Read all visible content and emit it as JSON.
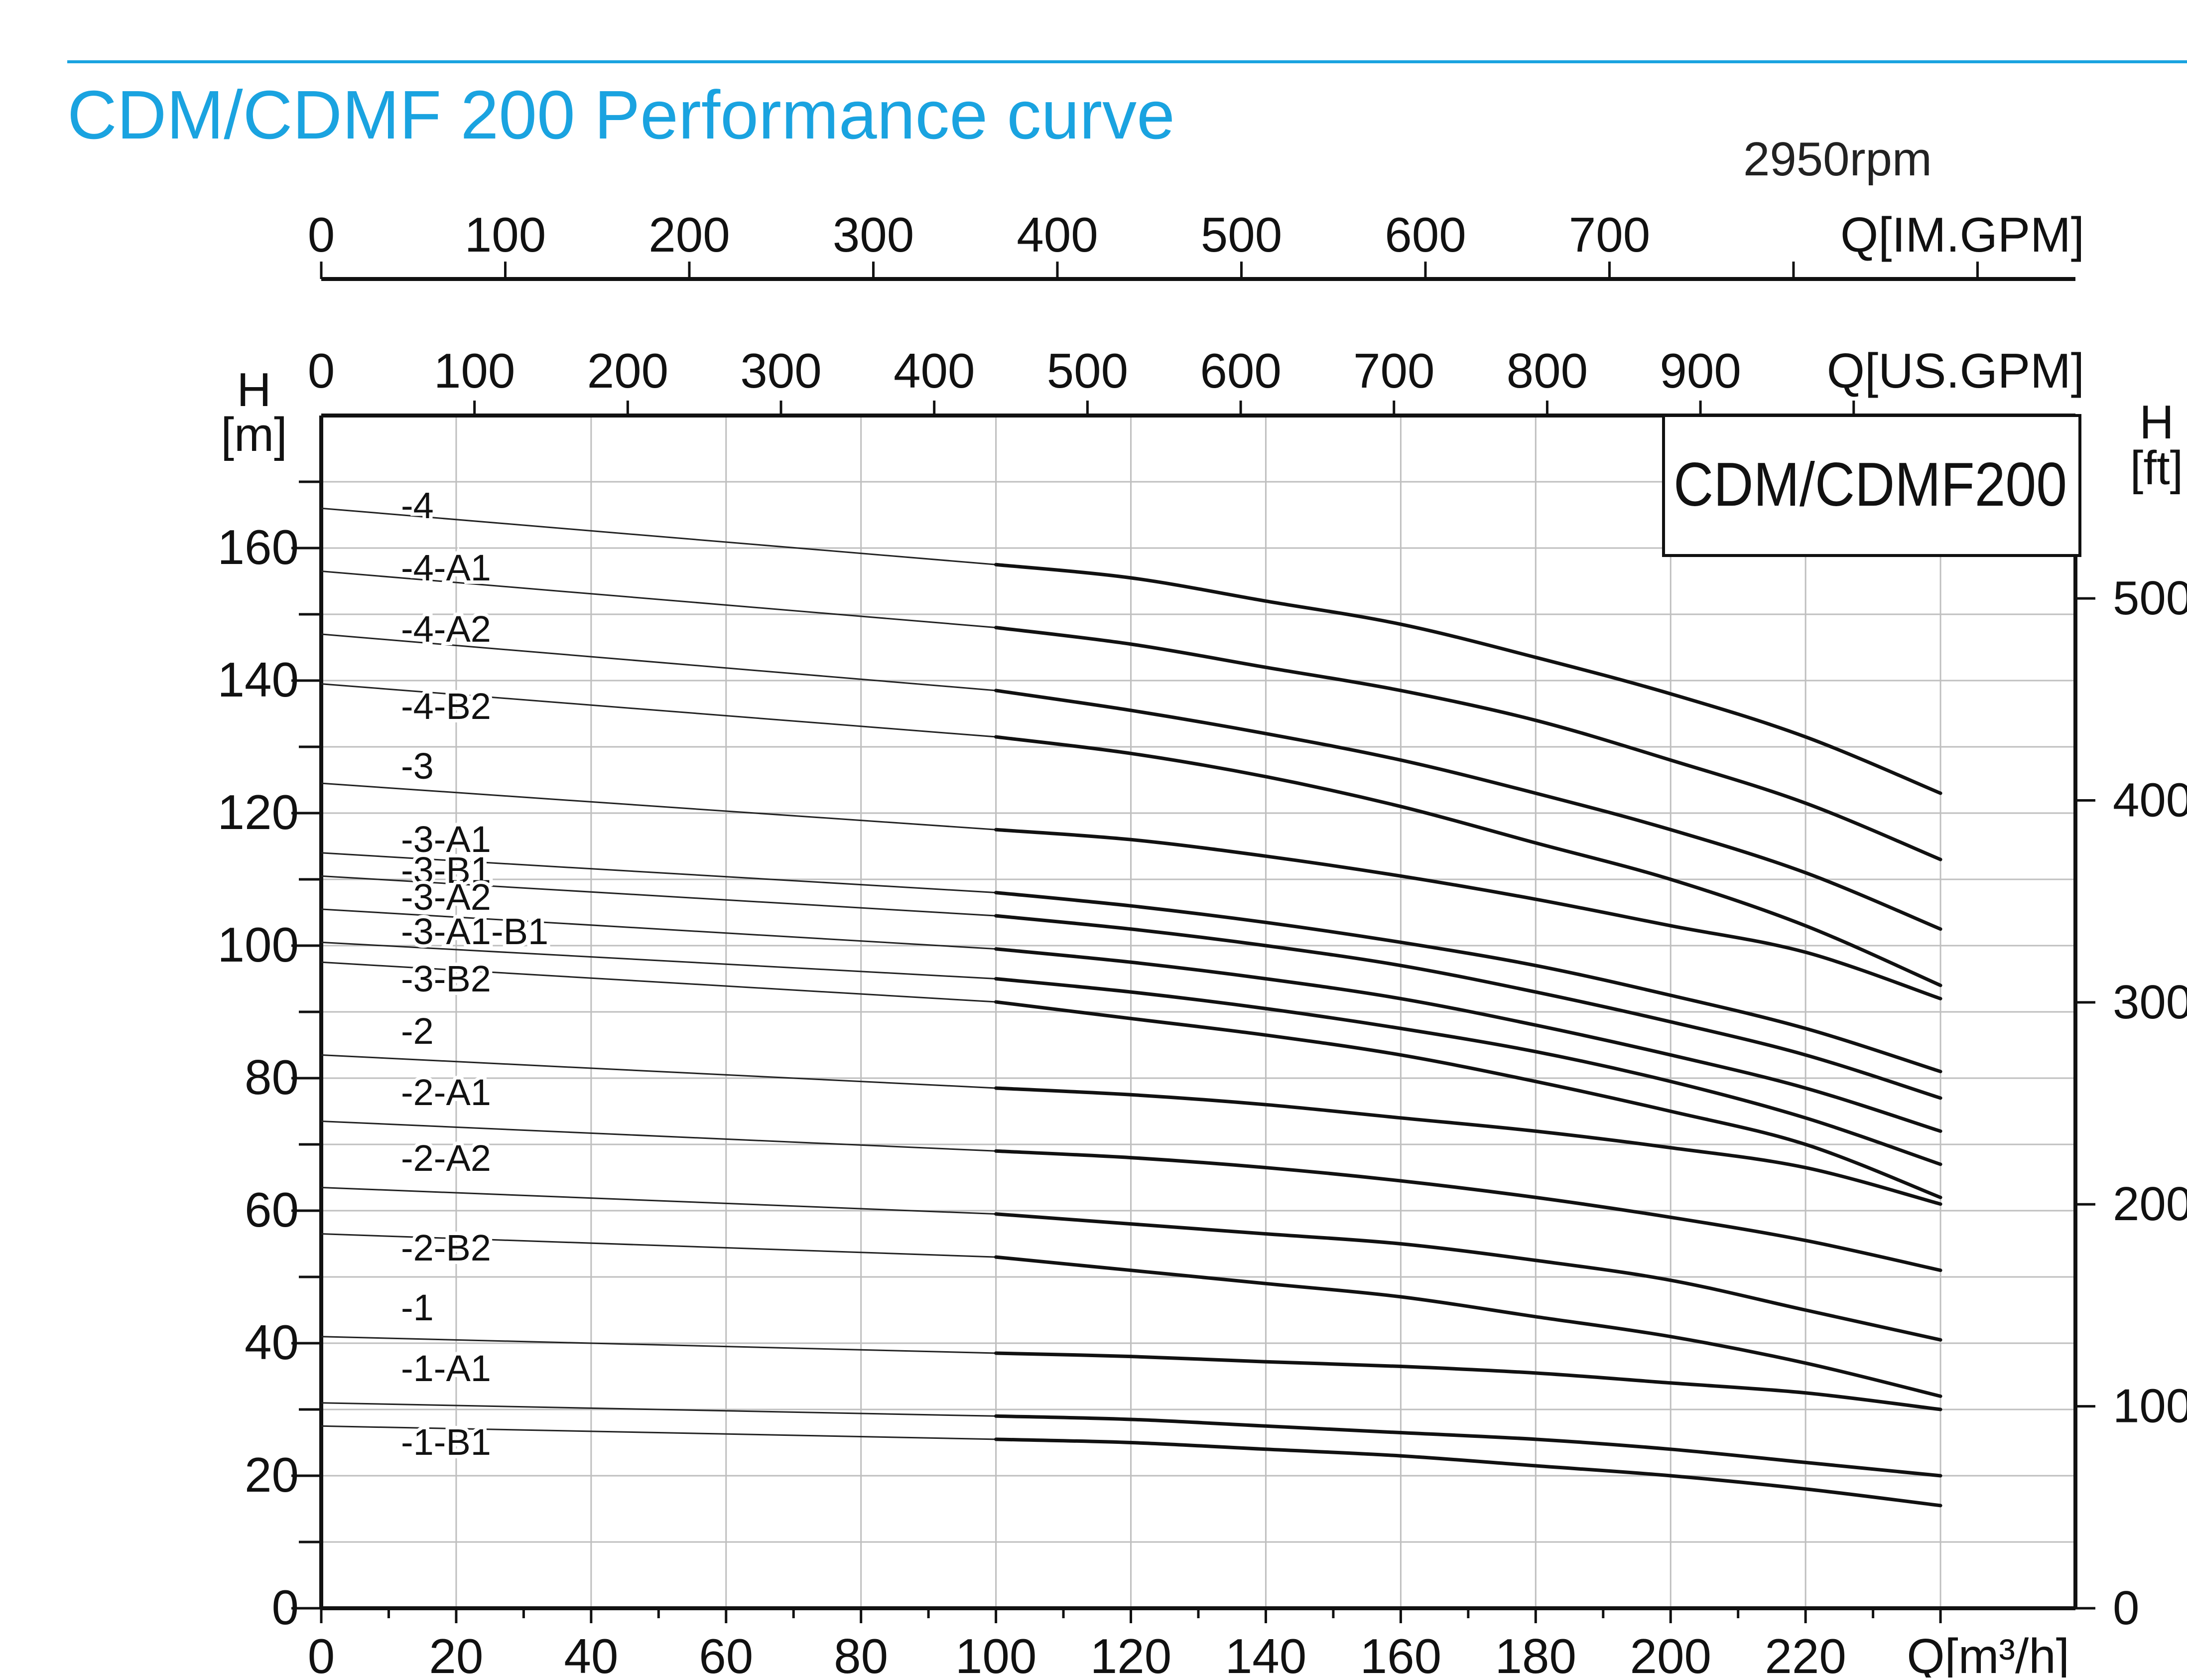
{
  "colors": {
    "title": "#1aa3e0",
    "rule": "#1aa3e0",
    "curve": "#111111",
    "leader": "#222222",
    "grid": "#bfbfbf",
    "axis": "#111111"
  },
  "header": {
    "title": "CDM/CDMF 200 Performance curve"
  },
  "chart_data": {
    "type": "line",
    "title": "CDM/CDMF 200 Performance curve",
    "speed_label": "2950rpm",
    "model_label": "CDM/CDMF200",
    "grid": true,
    "x": {
      "label": "Q[m³/h]",
      "range": [
        0,
        260
      ],
      "ticks": [
        "0",
        "20",
        "40",
        "60",
        "80",
        "100",
        "120",
        "140",
        "160",
        "180",
        "200",
        "220"
      ]
    },
    "x_us": {
      "label": "Q[US.GPM]",
      "range": [
        0,
        1144.7
      ],
      "ticks": [
        "0",
        "100",
        "200",
        "300",
        "400",
        "500",
        "600",
        "700",
        "800",
        "900"
      ]
    },
    "x_im": {
      "label": "Q[IM.GPM]",
      "range": [
        0,
        953.2
      ],
      "ticks": [
        "0",
        "100",
        "200",
        "300",
        "400",
        "500",
        "600",
        "700"
      ]
    },
    "y": {
      "label_top": "H",
      "label_bottom": "[m]",
      "range": [
        0,
        180
      ],
      "ticks": [
        "0",
        "20",
        "40",
        "60",
        "80",
        "100",
        "120",
        "140",
        "160"
      ]
    },
    "y_ft": {
      "label_top": "H",
      "label_bottom": "[ft]",
      "ticks": [
        "0",
        "100",
        "200",
        "300",
        "400",
        "500"
      ]
    },
    "series": [
      {
        "name": "-4",
        "q": [
          100,
          120,
          140,
          160,
          180,
          200,
          220,
          240
        ],
        "h": [
          157.5,
          155.5,
          152,
          148.5,
          143.5,
          138,
          131.5,
          123
        ]
      },
      {
        "name": "-4-A1",
        "q": [
          100,
          120,
          140,
          160,
          180,
          200,
          220,
          240
        ],
        "h": [
          148,
          145.5,
          142,
          138.5,
          134,
          128,
          121.5,
          113
        ]
      },
      {
        "name": "-4-A2",
        "q": [
          100,
          120,
          140,
          160,
          180,
          200,
          220,
          240
        ],
        "h": [
          138.5,
          135.5,
          132,
          128,
          123,
          117.5,
          111,
          102.5
        ]
      },
      {
        "name": "-4-B2",
        "q": [
          100,
          120,
          140,
          160,
          180,
          200,
          220,
          240
        ],
        "h": [
          131.5,
          129,
          125.5,
          121,
          115.5,
          110,
          103,
          94
        ]
      },
      {
        "name": "-3",
        "q": [
          100,
          120,
          140,
          160,
          180,
          200,
          220,
          240
        ],
        "h": [
          117.5,
          116,
          113.5,
          110.5,
          107,
          103,
          99,
          92
        ]
      },
      {
        "name": "-3-A1",
        "q": [
          100,
          120,
          140,
          160,
          180,
          200,
          220,
          240
        ],
        "h": [
          108,
          106,
          103.5,
          100.5,
          97,
          92.5,
          87.5,
          81
        ]
      },
      {
        "name": "-3-B1",
        "q": [
          100,
          120,
          140,
          160,
          180,
          200,
          220,
          240
        ],
        "h": [
          104.5,
          102.5,
          100,
          97,
          93,
          88.5,
          83.5,
          77
        ]
      },
      {
        "name": "-3-A2",
        "q": [
          100,
          120,
          140,
          160,
          180,
          200,
          220,
          240
        ],
        "h": [
          99.5,
          97.5,
          95,
          92,
          88,
          83.5,
          78.5,
          72
        ]
      },
      {
        "name": "-3-A1-B1",
        "q": [
          100,
          120,
          140,
          160,
          180,
          200,
          220,
          240
        ],
        "h": [
          95,
          93,
          90.5,
          87.5,
          84,
          79.5,
          74,
          67
        ]
      },
      {
        "name": "-3-B2",
        "q": [
          100,
          120,
          140,
          160,
          180,
          200,
          220,
          240
        ],
        "h": [
          91.5,
          89,
          86.5,
          83.5,
          79.5,
          75,
          70,
          62
        ]
      },
      {
        "name": "-2",
        "q": [
          100,
          120,
          140,
          160,
          180,
          200,
          220,
          240
        ],
        "h": [
          78.5,
          77.5,
          76,
          74,
          72,
          69.5,
          66.5,
          61
        ]
      },
      {
        "name": "-2-A1",
        "q": [
          100,
          120,
          140,
          160,
          180,
          200,
          220,
          240
        ],
        "h": [
          69,
          68,
          66.5,
          64.5,
          62,
          59,
          55.5,
          51
        ]
      },
      {
        "name": "-2-A2",
        "q": [
          100,
          120,
          140,
          160,
          180,
          200,
          220,
          240
        ],
        "h": [
          59.5,
          58,
          56.5,
          55,
          52.5,
          49.5,
          45,
          40.5
        ]
      },
      {
        "name": "-2-B2",
        "q": [
          100,
          120,
          140,
          160,
          180,
          200,
          220,
          240
        ],
        "h": [
          53,
          51,
          49,
          47,
          44,
          41,
          37,
          32
        ]
      },
      {
        "name": "-1",
        "q": [
          100,
          120,
          140,
          160,
          180,
          200,
          220,
          240
        ],
        "h": [
          38.5,
          38,
          37.2,
          36.5,
          35.5,
          34,
          32.5,
          30
        ]
      },
      {
        "name": "-1-A1",
        "q": [
          100,
          120,
          140,
          160,
          180,
          200,
          220,
          240
        ],
        "h": [
          29,
          28.5,
          27.5,
          26.5,
          25.5,
          24,
          22,
          20
        ]
      },
      {
        "name": "-1-B1",
        "q": [
          100,
          120,
          140,
          160,
          180,
          200,
          220,
          240
        ],
        "h": [
          25.5,
          25,
          24,
          23,
          21.5,
          20,
          18,
          15.5
        ]
      }
    ],
    "shutoff_heads": [
      166,
      156.5,
      147,
      139.5,
      124.5,
      114,
      110.5,
      105.5,
      100.5,
      97.5,
      83.5,
      73.5,
      63.5,
      56.5,
      41,
      31,
      27.5
    ]
  }
}
